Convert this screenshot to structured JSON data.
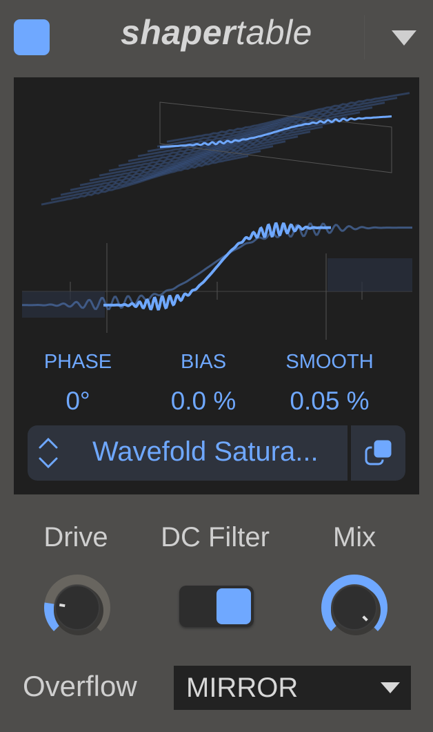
{
  "header": {
    "title_bold": "shaper",
    "title_light": "table",
    "enabled": true
  },
  "accent_color": "#6fa8ff",
  "params": [
    {
      "label": "PHASE",
      "value": "0°"
    },
    {
      "label": "BIAS",
      "value": "0.0 %"
    },
    {
      "label": "SMOOTH",
      "value": "0.05 %"
    }
  ],
  "preset": {
    "name": "Wavefold Satura..."
  },
  "controls": {
    "drive": {
      "label": "Drive",
      "level": 0.2
    },
    "dc_filter": {
      "label": "DC Filter",
      "on": true
    },
    "mix": {
      "label": "Mix",
      "level": 1.0
    }
  },
  "overflow": {
    "label": "Overflow",
    "value": "MIRROR"
  }
}
